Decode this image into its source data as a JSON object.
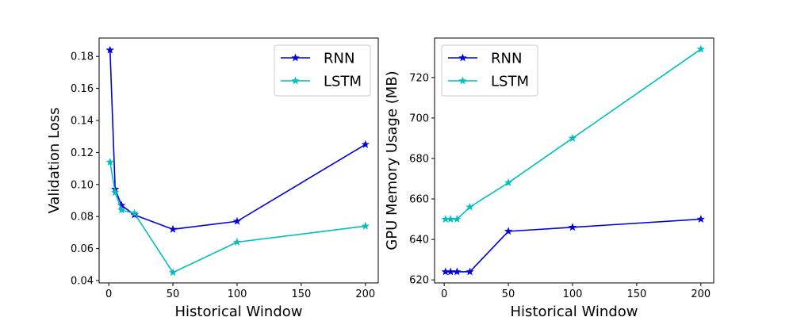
{
  "chart_data": [
    {
      "type": "line",
      "xlabel": "Historical Window",
      "ylabel": "Validation Loss",
      "xlim": [
        -7.5,
        210
      ],
      "ylim": [
        0.0385,
        0.1915
      ],
      "xticks": [
        0,
        50,
        100,
        150,
        200
      ],
      "xtick_labels": [
        "0",
        "50",
        "100",
        "150",
        "200"
      ],
      "yticks": [
        0.04,
        0.06,
        0.08,
        0.1,
        0.12,
        0.14,
        0.16,
        0.18
      ],
      "ytick_labels": [
        "0.04",
        "0.06",
        "0.08",
        "0.10",
        "0.12",
        "0.14",
        "0.16",
        "0.18"
      ],
      "legend_position": "top-right",
      "series": [
        {
          "name": "RNN",
          "color": "#0000dd",
          "x": [
            1,
            5,
            10,
            20,
            50,
            100,
            200
          ],
          "y": [
            0.184,
            0.097,
            0.087,
            0.081,
            0.072,
            0.077,
            0.125
          ]
        },
        {
          "name": "LSTM",
          "color": "#00bfbf",
          "x": [
            1,
            5,
            10,
            20,
            50,
            100,
            200
          ],
          "y": [
            0.114,
            0.095,
            0.084,
            0.082,
            0.045,
            0.064,
            0.074
          ]
        }
      ]
    },
    {
      "type": "line",
      "xlabel": "Historical Window",
      "ylabel": "GPU Memory Usage (MB)",
      "xlim": [
        -7.5,
        210
      ],
      "ylim": [
        618.5,
        739.5
      ],
      "xticks": [
        0,
        50,
        100,
        150,
        200
      ],
      "xtick_labels": [
        "0",
        "50",
        "100",
        "150",
        "200"
      ],
      "yticks": [
        620,
        640,
        660,
        680,
        700,
        720
      ],
      "ytick_labels": [
        "620",
        "640",
        "660",
        "680",
        "700",
        "720"
      ],
      "legend_position": "top-left",
      "series": [
        {
          "name": "RNN",
          "color": "#0000dd",
          "x": [
            1,
            5,
            10,
            20,
            50,
            100,
            200
          ],
          "y": [
            624,
            624,
            624,
            624,
            644,
            646,
            650
          ]
        },
        {
          "name": "LSTM",
          "color": "#00bfbf",
          "x": [
            1,
            5,
            10,
            20,
            50,
            100,
            200
          ],
          "y": [
            650,
            650,
            650,
            656,
            668,
            690,
            734
          ]
        }
      ]
    }
  ]
}
